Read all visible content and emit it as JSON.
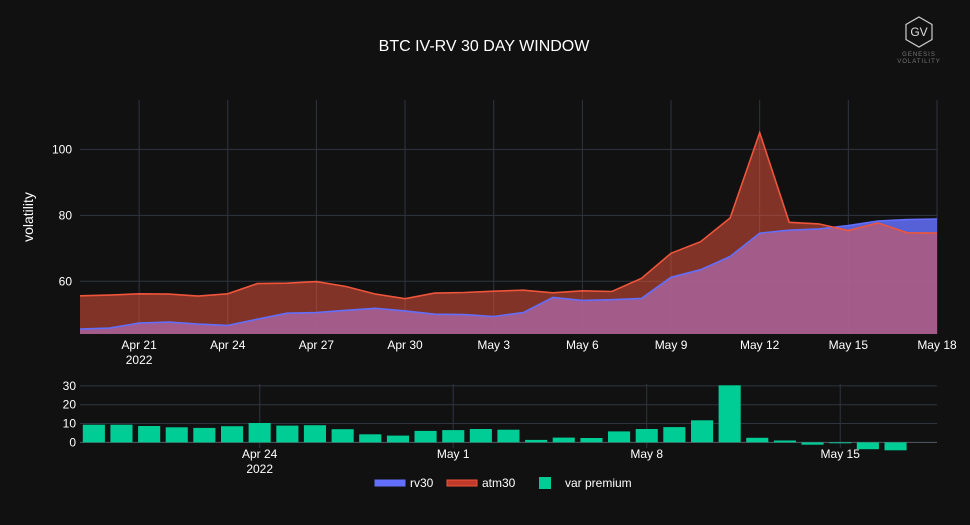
{
  "title": "BTC IV-RV 30 DAY WINDOW",
  "logo": {
    "mark": "GV",
    "line1": "GENESIS",
    "line2": "VOLATILITY"
  },
  "colors": {
    "background": "#111111",
    "grid": "#2f3440",
    "rv30": "#636efa",
    "atm30": "#ef553b",
    "var_premium": "#00cc96"
  },
  "chart_data": [
    {
      "type": "area",
      "title": "BTC IV-RV 30 DAY WINDOW",
      "ylabel": "volatility",
      "xlabel": "",
      "x_start": "2022-04-19",
      "x_end": "2022-05-18",
      "ylim": [
        44,
        115
      ],
      "yticks": [
        60,
        80,
        100
      ],
      "xticks": [
        {
          "date": "2022-04-21",
          "label": "Apr 21",
          "sub": "2022"
        },
        {
          "date": "2022-04-24",
          "label": "Apr 24",
          "sub": ""
        },
        {
          "date": "2022-04-27",
          "label": "Apr 27",
          "sub": ""
        },
        {
          "date": "2022-04-30",
          "label": "Apr 30",
          "sub": ""
        },
        {
          "date": "2022-05-03",
          "label": "May 3",
          "sub": ""
        },
        {
          "date": "2022-05-06",
          "label": "May 6",
          "sub": ""
        },
        {
          "date": "2022-05-09",
          "label": "May 9",
          "sub": ""
        },
        {
          "date": "2022-05-12",
          "label": "May 12",
          "sub": ""
        },
        {
          "date": "2022-05-15",
          "label": "May 15",
          "sub": ""
        },
        {
          "date": "2022-05-18",
          "label": "May 18",
          "sub": ""
        }
      ],
      "grid": true,
      "legend": "bottom-center",
      "x": [
        "2022-04-19",
        "2022-04-20",
        "2022-04-21",
        "2022-04-22",
        "2022-04-23",
        "2022-04-24",
        "2022-04-25",
        "2022-04-26",
        "2022-04-27",
        "2022-04-28",
        "2022-04-29",
        "2022-04-30",
        "2022-05-01",
        "2022-05-02",
        "2022-05-03",
        "2022-05-04",
        "2022-05-05",
        "2022-05-06",
        "2022-05-07",
        "2022-05-08",
        "2022-05-09",
        "2022-05-10",
        "2022-05-11",
        "2022-05-12",
        "2022-05-13",
        "2022-05-14",
        "2022-05-15",
        "2022-05-16",
        "2022-05-17",
        "2022-05-18"
      ],
      "series": [
        {
          "name": "rv30",
          "color": "#636efa",
          "values": [
            45.5,
            45.8,
            47.3,
            47.6,
            47.0,
            46.6,
            48.5,
            50.3,
            50.5,
            51.2,
            51.8,
            51.0,
            50.0,
            49.9,
            49.3,
            50.5,
            55.1,
            54.2,
            54.4,
            54.8,
            61.2,
            63.5,
            67.5,
            74.6,
            75.5,
            75.9,
            76.9,
            78.3,
            78.7,
            78.9
          ]
        },
        {
          "name": "atm30",
          "color": "#ef553b",
          "values": [
            55.6,
            55.8,
            56.2,
            56.1,
            55.5,
            56.2,
            59.3,
            59.4,
            59.9,
            58.4,
            56.1,
            54.7,
            56.4,
            56.6,
            57.0,
            57.3,
            56.5,
            57.1,
            56.9,
            60.9,
            68.5,
            72.0,
            79.2,
            105.1,
            77.9,
            77.4,
            75.4,
            77.7,
            74.7,
            74.6
          ]
        }
      ]
    },
    {
      "type": "bar",
      "title": "",
      "xlabel": "",
      "ylabel": "",
      "ylim": [
        -3,
        31
      ],
      "yticks": [
        0,
        10,
        20,
        30
      ],
      "x_start": "2022-04-18",
      "x_end": "2022-05-19",
      "xticks": [
        {
          "date": "2022-04-24",
          "label": "Apr 24",
          "sub": "2022"
        },
        {
          "date": "2022-05-01",
          "label": "May 1",
          "sub": ""
        },
        {
          "date": "2022-05-08",
          "label": "May 8",
          "sub": ""
        },
        {
          "date": "2022-05-15",
          "label": "May 15",
          "sub": ""
        }
      ],
      "x": [
        "2022-04-18",
        "2022-04-19",
        "2022-04-20",
        "2022-04-21",
        "2022-04-22",
        "2022-04-23",
        "2022-04-24",
        "2022-04-25",
        "2022-04-26",
        "2022-04-27",
        "2022-04-28",
        "2022-04-29",
        "2022-04-30",
        "2022-05-01",
        "2022-05-02",
        "2022-05-03",
        "2022-05-04",
        "2022-05-05",
        "2022-05-06",
        "2022-05-07",
        "2022-05-08",
        "2022-05-09",
        "2022-05-10",
        "2022-05-11",
        "2022-05-12",
        "2022-05-13",
        "2022-05-14",
        "2022-05-15",
        "2022-05-16",
        "2022-05-17",
        "2022-05-18"
      ],
      "series": [
        {
          "name": "var premium",
          "color": "#00cc96",
          "values": [
            9.4,
            9.4,
            8.7,
            8.0,
            7.7,
            8.6,
            10.3,
            8.9,
            9.1,
            7.0,
            4.3,
            3.6,
            6.1,
            6.5,
            7.1,
            6.7,
            1.3,
            2.5,
            2.3,
            5.8,
            7.1,
            8.1,
            11.7,
            30.3,
            2.4,
            1.0,
            -1.2,
            -0.5,
            -3.6,
            -4.2,
            0.0
          ]
        }
      ]
    }
  ],
  "legend": [
    {
      "label": "rv30",
      "type": "area",
      "color": "#636efa"
    },
    {
      "label": "atm30",
      "type": "area",
      "color": "#ef553b"
    },
    {
      "label": "var premium",
      "type": "bar",
      "color": "#00cc96"
    }
  ]
}
